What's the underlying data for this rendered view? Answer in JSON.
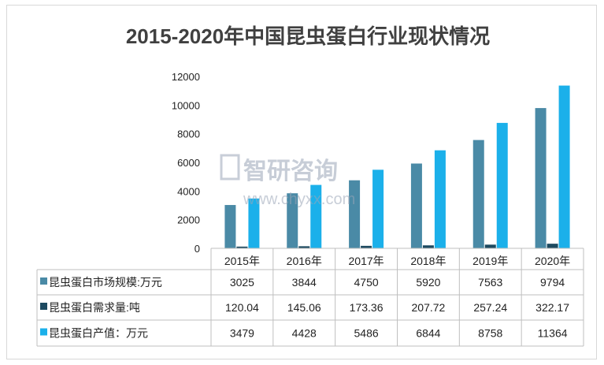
{
  "chart_data": {
    "type": "bar",
    "title": "2015-2020年中国昆虫蛋白行业现状情况",
    "categories": [
      "2015年",
      "2016年",
      "2017年",
      "2018年",
      "2019年",
      "2020年"
    ],
    "series": [
      {
        "name": "昆虫蛋白市场规模:万元",
        "values": [
          3025,
          3844,
          4750,
          5920,
          7563,
          9794
        ],
        "display": [
          "3025",
          "3844",
          "4750",
          "5920",
          "7563",
          "9794"
        ],
        "color": "#4a8aa6"
      },
      {
        "name": "昆虫蛋白需求量:吨",
        "values": [
          120.04,
          145.06,
          173.36,
          207.72,
          257.24,
          322.17
        ],
        "display": [
          "120.04",
          "145.06",
          "173.36",
          "207.72",
          "257.24",
          "322.17"
        ],
        "color": "#1d4a60"
      },
      {
        "name": "昆虫蛋白产值：万元",
        "values": [
          3479,
          4428,
          5486,
          6844,
          8758,
          11364
        ],
        "display": [
          "3479",
          "4428",
          "5486",
          "6844",
          "8758",
          "11364"
        ],
        "color": "#1bb0ea"
      }
    ],
    "yticks": [
      "0",
      "2000",
      "4000",
      "6000",
      "8000",
      "10000",
      "12000"
    ],
    "ylim": [
      0,
      12000
    ],
    "legend": "data-table-left",
    "grid": false
  },
  "watermark": {
    "brand": "智研咨询",
    "url": "www.chyxx.com"
  }
}
